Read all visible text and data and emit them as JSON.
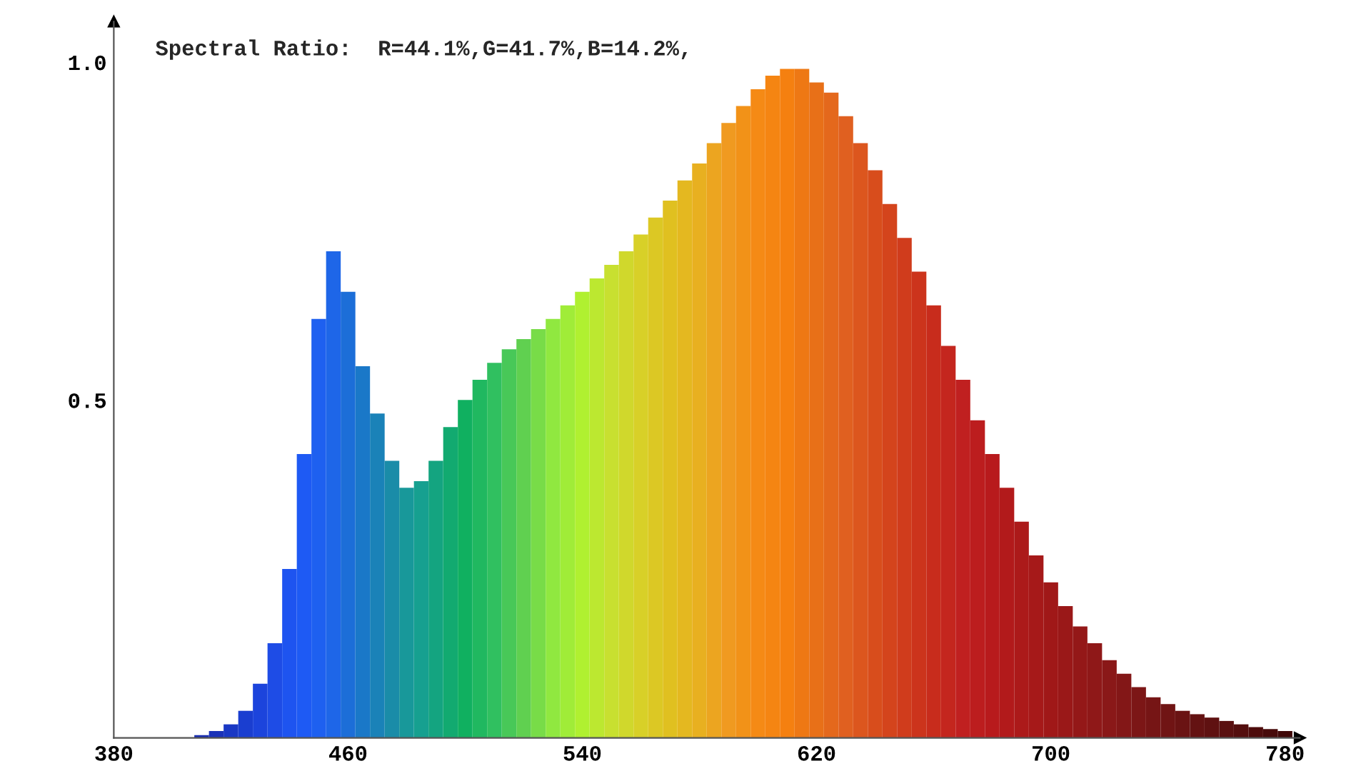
{
  "chart_data": {
    "type": "bar",
    "annotations": [
      "Spectral Ratio:  R=44.1%,G=41.7%,B=14.2%,"
    ],
    "x": [
      380,
      385,
      390,
      395,
      400,
      405,
      410,
      415,
      420,
      425,
      430,
      435,
      440,
      445,
      450,
      455,
      460,
      465,
      470,
      475,
      480,
      485,
      490,
      495,
      500,
      505,
      510,
      515,
      520,
      525,
      530,
      535,
      540,
      545,
      550,
      555,
      560,
      565,
      570,
      575,
      580,
      585,
      590,
      595,
      600,
      605,
      610,
      615,
      620,
      625,
      630,
      635,
      640,
      645,
      650,
      655,
      660,
      665,
      670,
      675,
      680,
      685,
      690,
      695,
      700,
      705,
      710,
      715,
      720,
      725,
      730,
      735,
      740,
      745,
      750,
      755,
      760,
      765,
      770,
      775,
      780
    ],
    "values": [
      0,
      0,
      null,
      0,
      null,
      null,
      0.004,
      0.01,
      0.02,
      0.04,
      0.08,
      0.14,
      0.25,
      0.42,
      0.62,
      0.72,
      0.66,
      0.55,
      0.48,
      0.41,
      0.37,
      0.38,
      0.41,
      0.46,
      0.5,
      0.53,
      0.555,
      0.575,
      0.59,
      0.605,
      0.62,
      0.64,
      0.66,
      0.68,
      0.7,
      0.72,
      0.745,
      0.77,
      0.795,
      0.825,
      0.85,
      0.88,
      0.91,
      0.935,
      0.96,
      0.98,
      0.99,
      0.99,
      0.97,
      0.955,
      0.92,
      0.88,
      0.84,
      0.79,
      0.74,
      0.69,
      0.64,
      0.58,
      0.53,
      0.47,
      0.42,
      0.37,
      0.32,
      0.27,
      0.23,
      0.195,
      0.165,
      0.14,
      0.115,
      0.095,
      0.075,
      0.06,
      0.05,
      0.04,
      0.035,
      0.03,
      0.025,
      0.02,
      0.016,
      0.013,
      0.01
    ],
    "colors": [
      "#1a1a80",
      "#1a1a88",
      "#1a1e90",
      "#1a2298",
      "#1a26a0",
      "#1a2aa8",
      "#1a2eb0",
      "#1a32b8",
      "#1a38c4",
      "#1a3ed0",
      "#1c44dc",
      "#1e4ce6",
      "#1e54f0",
      "#1e5af4",
      "#1e60f0",
      "#1e66e8",
      "#1c6ed8",
      "#1a78c8",
      "#1a82b8",
      "#1a8ca8",
      "#18989a",
      "#16a090",
      "#14a480",
      "#12aa70",
      "#10b060",
      "#20b860",
      "#30c060",
      "#48c858",
      "#60d050",
      "#78dc48",
      "#90e840",
      "#a0ec38",
      "#b0f030",
      "#bce830",
      "#c8e030",
      "#d0d82c",
      "#d8d028",
      "#dcc824",
      "#e0c020",
      "#e4b820",
      "#e8b020",
      "#eca520",
      "#f09a20",
      "#f29218",
      "#f58a15",
      "#f58512",
      "#f58010",
      "#ee7814",
      "#e87018",
      "#e4681c",
      "#e06020",
      "#dc561e",
      "#d84d1c",
      "#d4441c",
      "#d03c1c",
      "#cc341c",
      "#c82c1c",
      "#c4261e",
      "#c02020",
      "#bc1d1e",
      "#b81a1c",
      "#b21a1b",
      "#ac1a1a",
      "#a61919",
      "#a01818",
      "#9a1818",
      "#941818",
      "#8f1818",
      "#8a1818",
      "#831717",
      "#7c1616",
      "#761515",
      "#701414",
      "#6a1313",
      "#641212",
      "#5f1111",
      "#5a1010",
      "#540e0e",
      "#4e0c0c",
      "#470a0a",
      "#400808"
    ],
    "xlim": [
      380,
      785
    ],
    "ylim": [
      0,
      1.06
    ],
    "xticks": [
      380,
      460,
      540,
      620,
      700,
      780
    ],
    "yticks": [
      0.5,
      {
        "value": 1.0,
        "label": "1.0"
      }
    ],
    "grid": false
  }
}
